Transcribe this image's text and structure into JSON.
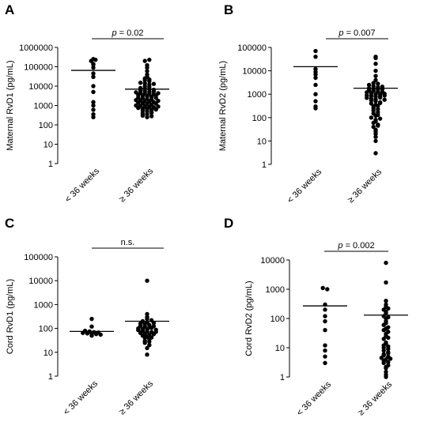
{
  "chart_data": [
    {
      "type": "scatter",
      "panel": "A",
      "ylabel": "Maternal RvD1 (pg/mL)",
      "yscale": "log",
      "ylim": [
        1,
        1000000
      ],
      "yticks": [
        "1",
        "10",
        "100",
        "1000",
        "10000",
        "100000",
        "1000000"
      ],
      "categories": [
        "< 36 weeks",
        "≥ 36 weeks"
      ],
      "significance": {
        "prefix": "p",
        "text": " = 0.02"
      },
      "series": [
        {
          "median": 65000,
          "values": [
            250000,
            200000,
            140000,
            130000,
            90000,
            45000,
            30000,
            10000,
            5000,
            1500,
            1000,
            600,
            350,
            250,
            230000
          ]
        },
        {
          "median": 7000,
          "values": [
            200000,
            120000,
            60000,
            40000,
            30000,
            25000,
            20000,
            18000,
            15000,
            14000,
            12000,
            10000,
            9000,
            8000,
            7500,
            7000,
            6500,
            6000,
            5500,
            5000,
            4800,
            4500,
            4200,
            4000,
            3800,
            3500,
            3200,
            3000,
            2800,
            2600,
            2400,
            2200,
            2000,
            1900,
            1800,
            1700,
            1600,
            1500,
            1400,
            1300,
            1200,
            1100,
            1000,
            950,
            900,
            850,
            800,
            750,
            700,
            650,
            600,
            550,
            500,
            450,
            400,
            350,
            300,
            250,
            230000,
            90000,
            22000,
            13000,
            5200,
            4300,
            3300,
            2500,
            1750,
            1250,
            880,
            620,
            420,
            280
          ]
        }
      ]
    },
    {
      "type": "scatter",
      "panel": "B",
      "ylabel": "Maternal RvD2 (pg/mL)",
      "yscale": "log",
      "ylim": [
        1,
        100000
      ],
      "yticks": [
        "1",
        "10",
        "100",
        "1000",
        "10000",
        "100000"
      ],
      "categories": [
        "< 36 weeks",
        "≥ 36 weeks"
      ],
      "significance": {
        "prefix": "p",
        "text": " = 0.007"
      },
      "series": [
        {
          "median": 15000,
          "values": [
            70000,
            40000,
            12000,
            9000,
            7000,
            5000,
            2500,
            1000,
            500,
            300,
            250
          ]
        },
        {
          "median": 1800,
          "values": [
            40000,
            35000,
            20000,
            10000,
            6000,
            4000,
            3000,
            2500,
            2200,
            2000,
            1800,
            1700,
            1600,
            1500,
            1400,
            1300,
            1200,
            1100,
            1000,
            950,
            900,
            850,
            800,
            750,
            700,
            650,
            600,
            550,
            500,
            450,
            400,
            350,
            300,
            250,
            200,
            150,
            120,
            100,
            80,
            60,
            50,
            40,
            30,
            20,
            15,
            10,
            3,
            2800,
            2100,
            1650,
            1250,
            1050,
            880,
            720,
            580,
            420,
            320,
            230,
            170,
            130,
            90,
            70,
            45,
            25
          ]
        }
      ]
    },
    {
      "type": "scatter",
      "panel": "C",
      "ylabel": "Cord RvD1 (pg/mL)",
      "yscale": "log",
      "ylim": [
        1,
        100000
      ],
      "yticks": [
        "1",
        "10",
        "100",
        "1000",
        "10000",
        "100000"
      ],
      "categories": [
        "< 36 weeks",
        "≥ 36 weeks"
      ],
      "significance": {
        "prefix": "",
        "text": "n.s."
      },
      "series": [
        {
          "median": 75,
          "values": [
            250,
            120,
            80,
            75,
            70,
            68,
            65,
            62,
            60,
            58,
            55,
            50
          ]
        },
        {
          "median": 200,
          "values": [
            10000,
            400,
            300,
            250,
            200,
            180,
            160,
            150,
            140,
            130,
            120,
            110,
            100,
            95,
            90,
            85,
            80,
            75,
            70,
            65,
            60,
            55,
            50,
            45,
            40,
            35,
            30,
            25,
            20,
            8,
            220,
            170,
            125,
            105,
            88,
            72,
            58,
            42,
            28,
            15
          ]
        }
      ]
    },
    {
      "type": "scatter",
      "panel": "D",
      "ylabel": "Cord RvD2 (pg/mL)",
      "yscale": "log",
      "ylim": [
        1,
        10000
      ],
      "yticks": [
        "1",
        "10",
        "100",
        "1000",
        "10000"
      ],
      "categories": [
        "< 36 weeks",
        "≥ 36 weeks"
      ],
      "significance": {
        "prefix": "p",
        "text": " = 0.002"
      },
      "series": [
        {
          "median": 270,
          "values": [
            1100,
            1000,
            300,
            200,
            120,
            80,
            40,
            12,
            8,
            5,
            3
          ]
        },
        {
          "median": 130,
          "values": [
            8000,
            1700,
            400,
            300,
            250,
            200,
            150,
            120,
            100,
            80,
            60,
            50,
            40,
            30,
            25,
            20,
            15,
            12,
            10,
            9,
            8,
            7,
            6,
            5.5,
            5,
            4.5,
            4,
            3.5,
            3,
            2.5,
            2,
            1.5,
            1,
            220,
            170,
            110,
            70,
            45,
            35,
            22,
            14,
            11,
            6.5,
            4.2,
            3.2,
            2.2,
            1.2
          ]
        }
      ]
    }
  ]
}
